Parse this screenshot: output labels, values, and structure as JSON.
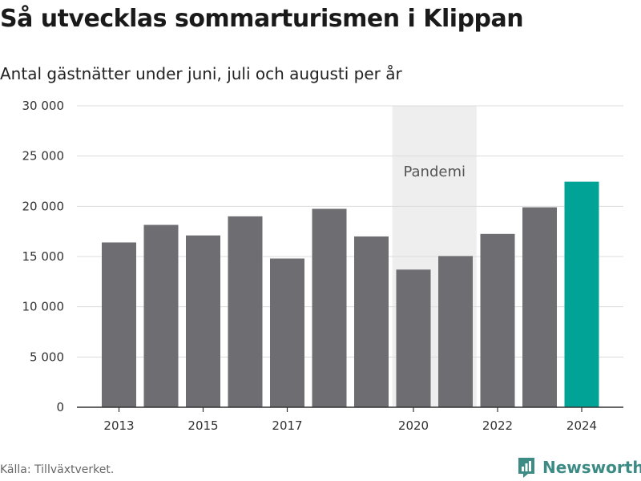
{
  "header": {
    "title": "Så utvecklas sommarturismen i Klippan",
    "subtitle": "Antal gästnätter under juni, juli och augusti per år"
  },
  "footer": {
    "source": "Källa: Tillväxtverket.",
    "brand": "Newsworthy"
  },
  "colors": {
    "bar": "#6e6d72",
    "highlight": "#00a396",
    "band": "#eeeeee",
    "grid": "#dcdcdc",
    "axis": "#333333",
    "text": "#333333",
    "brand": "#3d8b85"
  },
  "chart_data": {
    "type": "bar",
    "title": "Så utvecklas sommarturismen i Klippan",
    "subtitle": "Antal gästnätter under juni, juli och augusti per år",
    "categories": [
      "2013",
      "2014",
      "2015",
      "2016",
      "2017",
      "2018",
      "2019",
      "2020",
      "2021",
      "2022",
      "2023",
      "2024"
    ],
    "values": [
      16400,
      18150,
      17100,
      19000,
      14800,
      19750,
      17000,
      13700,
      15050,
      17250,
      19900,
      22450
    ],
    "highlight_category": "2024",
    "x_tick_labels": [
      "2013",
      "2015",
      "2017",
      "2020",
      "2022",
      "2024"
    ],
    "y_ticks": [
      0,
      5000,
      10000,
      15000,
      20000,
      25000,
      30000
    ],
    "y_tick_labels": [
      "0",
      "5 000",
      "10 000",
      "15 000",
      "20 000",
      "25 000",
      "30 000"
    ],
    "ylim": [
      0,
      30000
    ],
    "grid": true,
    "legend": false,
    "annotations": [
      {
        "label": "Pandemi",
        "from": "2020",
        "to": "2021",
        "kind": "shaded-band"
      }
    ]
  }
}
